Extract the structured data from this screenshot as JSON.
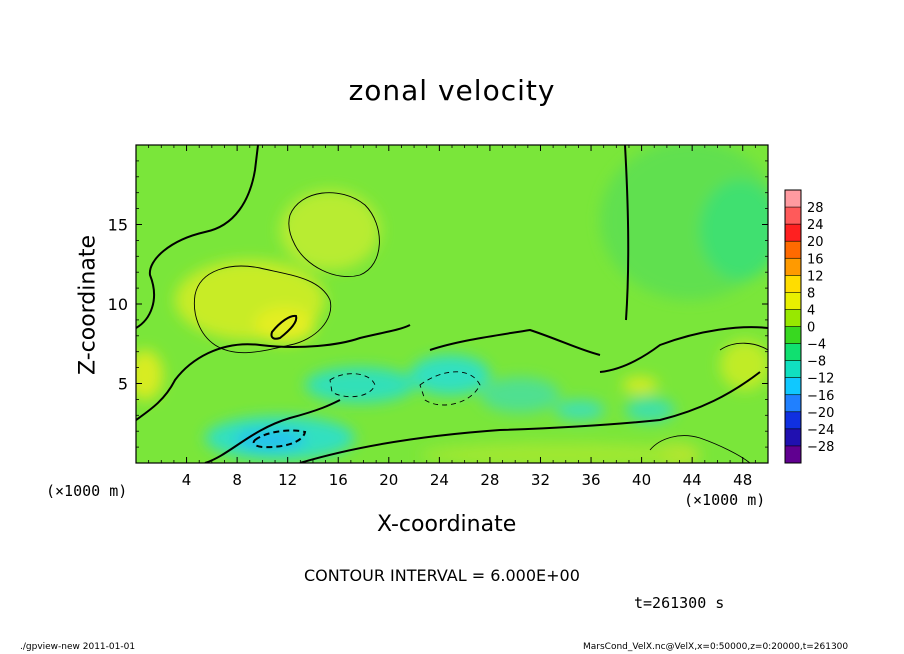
{
  "header": {
    "title": "zonal velocity"
  },
  "footer": {
    "left": "./gpview-new  2011-01-01",
    "right": "MarsCond_VelX.nc@VelX,x=0:50000,z=0:20000,t=261300"
  },
  "annotations": {
    "contour_interval": "CONTOUR INTERVAL = 6.000E+00",
    "time": "t=261300 s",
    "x_unit_left": "(×1000 m)",
    "x_unit_right": "(×1000 m)"
  },
  "chart_data": {
    "type": "heatmap",
    "title": "zonal velocity",
    "xlabel": "X-coordinate",
    "ylabel": "Z-coordinate",
    "xlim": [
      0,
      50
    ],
    "ylim": [
      0,
      20
    ],
    "x_ticks": [
      "4",
      "8",
      "12",
      "16",
      "20",
      "24",
      "28",
      "32",
      "36",
      "40",
      "44",
      "48"
    ],
    "y_ticks": [
      "5",
      "10",
      "15"
    ],
    "x_tick_values": [
      4,
      8,
      12,
      16,
      20,
      24,
      28,
      32,
      36,
      40,
      44,
      48
    ],
    "y_tick_values": [
      5,
      10,
      15
    ],
    "colorbar": {
      "labels": [
        "28",
        "24",
        "20",
        "16",
        "12",
        "8",
        "4",
        "0",
        "−4",
        "−8",
        "−12",
        "−16",
        "−20",
        "−24",
        "−28"
      ],
      "colors": [
        "#ff9aa0",
        "#ff5a5a",
        "#ff2020",
        "#ff6a00",
        "#ff9a00",
        "#ffdd00",
        "#e8f000",
        "#98e800",
        "#38d820",
        "#10e070",
        "#10e0c0",
        "#10c8ff",
        "#2080ff",
        "#1030e0",
        "#2010b0",
        "#600090"
      ]
    },
    "contour_interval": 6,
    "grid": false,
    "legend": "colorbar-right"
  }
}
